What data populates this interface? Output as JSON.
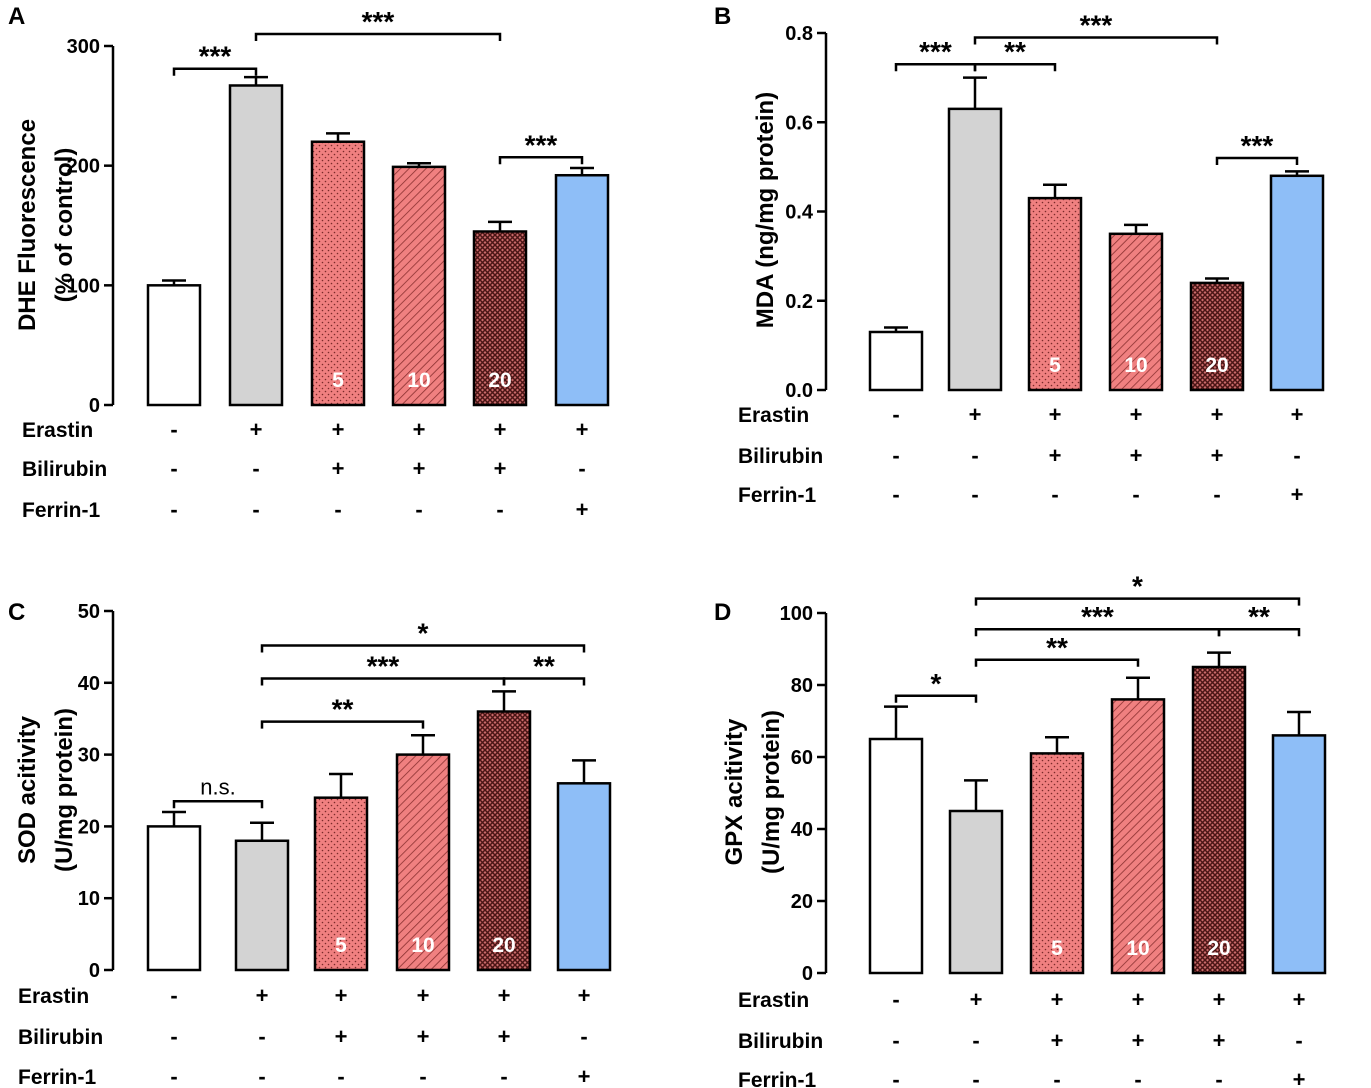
{
  "colors": {
    "control": "#ffffff",
    "erastin": "#d3d3d3",
    "bilirubin": "#f08080",
    "bilirubin_dark": "#6b2a2a",
    "ferrin": "#8ebef7",
    "axis": "#000000"
  },
  "chart_data": [
    {
      "id": "A",
      "panel_label": "A",
      "type": "bar",
      "title": "",
      "ylabel_lines": [
        "DHE Fluorescence",
        "(% of control)"
      ],
      "ylim": [
        0,
        300
      ],
      "yticks": [
        0,
        100,
        200,
        300
      ],
      "categories": [
        "Control",
        "Erastin",
        "Erastin + Bilirubin 5",
        "Erastin + Bilirubin 10",
        "Erastin + Bilirubin 20",
        "Erastin + Ferrin-1"
      ],
      "values": [
        100,
        267,
        220,
        199,
        145,
        192
      ],
      "errors": [
        4,
        7,
        7,
        3,
        8,
        6
      ],
      "bar_labels": [
        "",
        "",
        "5",
        "10",
        "20",
        ""
      ],
      "conditions": [
        {
          "label": "Erastin",
          "signs": [
            "-",
            "+",
            "+",
            "+",
            "+",
            "+"
          ]
        },
        {
          "label": "Bilirubin",
          "signs": [
            "-",
            "-",
            "+",
            "+",
            "+",
            "-"
          ]
        },
        {
          "label": "Ferrin-1",
          "signs": [
            "-",
            "-",
            "-",
            "-",
            "-",
            "+"
          ]
        }
      ],
      "significance": [
        {
          "label": "***",
          "from": 0,
          "to": 1,
          "value": 281
        },
        {
          "label": "***",
          "from": 1,
          "to": 4,
          "value": 310
        },
        {
          "label": "***",
          "from": 4,
          "to": 5,
          "value": 207
        }
      ]
    },
    {
      "id": "B",
      "panel_label": "B",
      "type": "bar",
      "title": "",
      "ylabel_lines": [
        "MDA (ng/mg protein)"
      ],
      "ylim": [
        0,
        0.8
      ],
      "yticks": [
        0.0,
        0.2,
        0.4,
        0.6,
        0.8
      ],
      "categories": [
        "Control",
        "Erastin",
        "Erastin + Bilirubin 5",
        "Erastin + Bilirubin 10",
        "Erastin + Bilirubin 20",
        "Erastin + Ferrin-1"
      ],
      "values": [
        0.13,
        0.63,
        0.43,
        0.35,
        0.24,
        0.48
      ],
      "errors": [
        0.01,
        0.07,
        0.03,
        0.02,
        0.01,
        0.01
      ],
      "bar_labels": [
        "",
        "",
        "5",
        "10",
        "20",
        ""
      ],
      "conditions": [
        {
          "label": "Erastin",
          "signs": [
            "-",
            "+",
            "+",
            "+",
            "+",
            "+"
          ]
        },
        {
          "label": "Bilirubin",
          "signs": [
            "-",
            "-",
            "+",
            "+",
            "+",
            "-"
          ]
        },
        {
          "label": "Ferrin-1",
          "signs": [
            "-",
            "-",
            "-",
            "-",
            "-",
            "+"
          ]
        }
      ],
      "significance": [
        {
          "label": "***",
          "from": 0,
          "to": 1,
          "value": 0.73
        },
        {
          "label": "**",
          "from": 1,
          "to": 2,
          "value": 0.73
        },
        {
          "label": "***",
          "from": 1,
          "to": 4,
          "value": 0.79
        },
        {
          "label": "***",
          "from": 4,
          "to": 5,
          "value": 0.52
        }
      ]
    },
    {
      "id": "C",
      "panel_label": "C",
      "type": "bar",
      "title": "",
      "ylabel_lines": [
        "SOD acitivity",
        "(U/mg protein)"
      ],
      "ylim": [
        0,
        50
      ],
      "yticks": [
        0,
        10,
        20,
        30,
        40,
        50
      ],
      "categories": [
        "Control",
        "Erastin",
        "Erastin + Bilirubin 5",
        "Erastin + Bilirubin 10",
        "Erastin + Bilirubin 20",
        "Erastin + Ferrin-1"
      ],
      "values": [
        20,
        18,
        24,
        30,
        36,
        26
      ],
      "errors": [
        2,
        2.5,
        3.3,
        2.7,
        2.8,
        3.2
      ],
      "bar_labels": [
        "",
        "",
        "5",
        "10",
        "20",
        ""
      ],
      "conditions": [
        {
          "label": "Erastin",
          "signs": [
            "-",
            "+",
            "+",
            "+",
            "+",
            "+"
          ]
        },
        {
          "label": "Bilirubin",
          "signs": [
            "-",
            "-",
            "+",
            "+",
            "+",
            "-"
          ]
        },
        {
          "label": "Ferrin-1",
          "signs": [
            "-",
            "-",
            "-",
            "-",
            "-",
            "+"
          ]
        }
      ],
      "significance": [
        {
          "label": "n.s.",
          "from": 0,
          "to": 1,
          "value": 23.5
        },
        {
          "label": "**",
          "from": 1,
          "to": 3,
          "value": 34.6
        },
        {
          "label": "***",
          "from": 1,
          "to": 4,
          "value": 40.6
        },
        {
          "label": "**",
          "from": 4,
          "to": 5,
          "value": 40.6
        },
        {
          "label": "*",
          "from": 1,
          "to": 5,
          "value": 45.2
        }
      ]
    },
    {
      "id": "D",
      "panel_label": "D",
      "type": "bar",
      "title": "",
      "ylabel_lines": [
        "GPX acitivity",
        "(U/mg protein)"
      ],
      "ylim": [
        0,
        100
      ],
      "yticks": [
        0,
        20,
        40,
        60,
        80,
        100
      ],
      "categories": [
        "Control",
        "Erastin",
        "Erastin + Bilirubin 5",
        "Erastin + Bilirubin 10",
        "Erastin + Bilirubin 20",
        "Erastin + Ferrin-1"
      ],
      "values": [
        65,
        45,
        61,
        76,
        85,
        66
      ],
      "errors": [
        9,
        8.5,
        4.5,
        6,
        4,
        6.5
      ],
      "bar_labels": [
        "",
        "",
        "5",
        "10",
        "20",
        ""
      ],
      "conditions": [
        {
          "label": "Erastin",
          "signs": [
            "-",
            "+",
            "+",
            "+",
            "+",
            "+"
          ]
        },
        {
          "label": "Bilirubin",
          "signs": [
            "-",
            "-",
            "+",
            "+",
            "+",
            "-"
          ]
        },
        {
          "label": "Ferrin-1",
          "signs": [
            "-",
            "-",
            "-",
            "-",
            "-",
            "+"
          ]
        }
      ],
      "significance": [
        {
          "label": "*",
          "from": 0,
          "to": 1,
          "value": 77
        },
        {
          "label": "**",
          "from": 1,
          "to": 3,
          "value": 87
        },
        {
          "label": "***",
          "from": 1,
          "to": 4,
          "value": 95.5
        },
        {
          "label": "**",
          "from": 4,
          "to": 5,
          "value": 95.5
        },
        {
          "label": "*",
          "from": 1,
          "to": 5,
          "value": 104
        }
      ]
    }
  ]
}
